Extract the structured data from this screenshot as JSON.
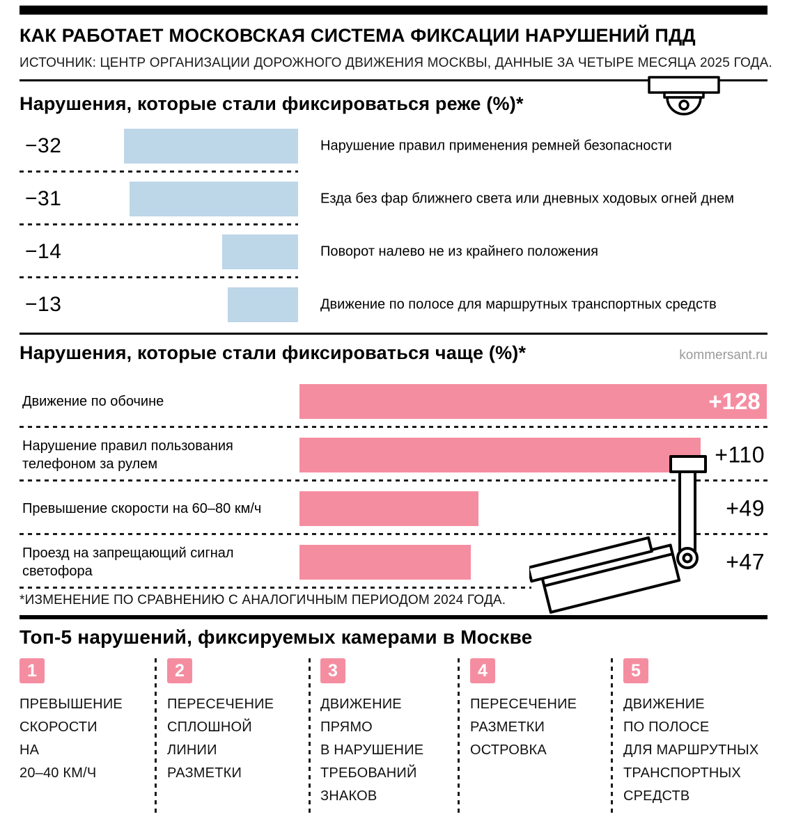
{
  "masthead": {
    "title": "КАК РАБОТАЕТ МОСКОВСКАЯ СИСТЕМА ФИКСАЦИИ НАРУШЕНИЙ ПДД",
    "source": "ИСТОЧНИК: ЦЕНТР ОРГАНИЗАЦИИ ДОРОЖНОГО ДВИЖЕНИЯ МОСКВЫ, ДАННЫЕ ЗА ЧЕТЫРЕ МЕСЯЦА 2025 ГОДА."
  },
  "watermark": "kommersant.ru",
  "footnote": "*ИЗМЕНЕНИЕ ПО СРАВНЕНИЮ С АНАЛОГИЧНЫМ ПЕРИОДОМ 2024 ГОДА.",
  "colors": {
    "bar-blue": "#bdd6e8",
    "bar-pink": "#f58da1",
    "ink": "#000000",
    "watermark-gray": "#9a9a9a"
  },
  "icons": {
    "dome_camera": "dome-camera-icon",
    "pole_camera": "traffic-camera-icon"
  },
  "chart_data": [
    {
      "type": "bar",
      "orientation": "horizontal",
      "title": "Нарушения, которые стали фиксироваться реже (%)*",
      "bar_color": "#bdd6e8",
      "categories": [
        "Нарушение правил применения ремней безопасности",
        "Езда без фар ближнего света или дневных ходовых огней днем",
        "Поворот налево не из крайнего положения",
        "Движение по полосе для маршрутных транспортных средств"
      ],
      "values": [
        -32,
        -31,
        -14,
        -13
      ],
      "value_labels": [
        "−32",
        "−31",
        "−14",
        "−13"
      ],
      "xlim": [
        -35,
        0
      ],
      "grid": false,
      "legend": false
    },
    {
      "type": "bar",
      "orientation": "horizontal",
      "title": "Нарушения, которые стали фиксироваться чаще (%)*",
      "bar_color": "#f58da1",
      "categories": [
        "Движение по обочине",
        "Нарушение правил пользования телефоном за рулем",
        "Превышение скорости на 60–80 км/ч",
        "Проезд на запрещающий сигнал светофора"
      ],
      "values": [
        128,
        110,
        49,
        47
      ],
      "value_labels": [
        "+128",
        "+110",
        "+49",
        "+47"
      ],
      "xlim": [
        0,
        135
      ],
      "grid": false,
      "legend": false
    }
  ],
  "top5": {
    "title": "Топ-5 нарушений, фиксируемых камерами в Москве",
    "items": [
      {
        "rank": "1",
        "label": "ПРЕВЫШЕНИЕ\nСКОРОСТИ\nНА\n20–40 КМ/Ч"
      },
      {
        "rank": "2",
        "label": "ПЕРЕСЕЧЕНИЕ\nСПЛОШНОЙ\nЛИНИИ\nРАЗМЕТКИ"
      },
      {
        "rank": "3",
        "label": "ДВИЖЕНИЕ\nПРЯМО\nВ НАРУШЕНИЕ\nТРЕБОВАНИЙ\nЗНАКОВ"
      },
      {
        "rank": "4",
        "label": "ПЕРЕСЕЧЕНИЕ\nРАЗМЕТКИ\nОСТРОВКА"
      },
      {
        "rank": "5",
        "label": "ДВИЖЕНИЕ\nПО ПОЛОСЕ\nДЛЯ МАРШРУТНЫХ\nТРАНСПОРТНЫХ\nСРЕДСТВ"
      }
    ]
  }
}
